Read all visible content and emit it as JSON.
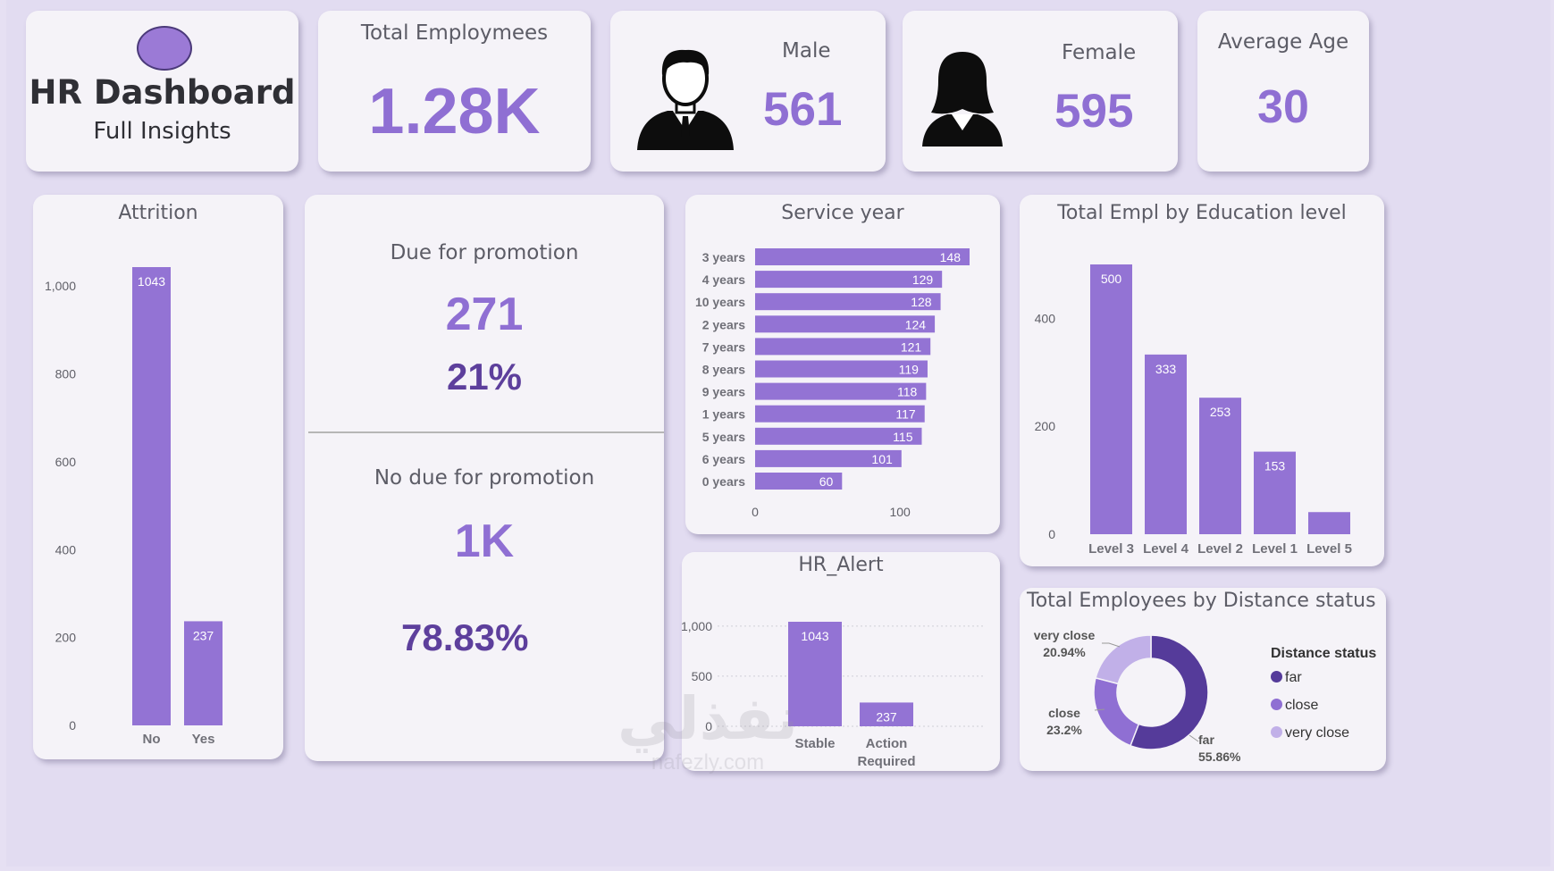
{
  "header": {
    "title": "HR Dashboard",
    "subtitle": "Full Insights",
    "colors": {
      "accent": "#8f6fd3",
      "dark": "#5d3f9c",
      "logo": "#9b7ad6"
    }
  },
  "kpis": {
    "total_employees": {
      "label": "Total Employmees",
      "value": "1.28K"
    },
    "male": {
      "label": "Male",
      "value": "561"
    },
    "female": {
      "label": "Female",
      "value": "595"
    },
    "average_age": {
      "label": "Average Age",
      "value": "30"
    }
  },
  "promotion": {
    "due_label": "Due for promotion",
    "due_count": "271",
    "due_pct": "21%",
    "no_due_label": "No due for promotion",
    "no_due_count": "1K",
    "no_due_pct": "78.83%"
  },
  "watermark": {
    "text": "نفذلي",
    "sub": "nafezly.com"
  },
  "chart_data": [
    {
      "id": "attrition",
      "type": "bar",
      "title": "Attrition",
      "categories": [
        "No",
        "Yes"
      ],
      "values": [
        1043,
        237
      ],
      "ylim": [
        0,
        1043
      ],
      "yticks": [
        0,
        200,
        400,
        600,
        800,
        1000
      ],
      "ytick_labels": [
        "0",
        "200",
        "400",
        "600",
        "800",
        "1,000"
      ],
      "grid": false
    },
    {
      "id": "service_year",
      "type": "bar",
      "orientation": "horizontal",
      "title": "Service year",
      "categories": [
        "3 years",
        "4 years",
        "10 years",
        "2 years",
        "7 years",
        "8 years",
        "9 years",
        "1 years",
        "5 years",
        "6 years",
        "0 years"
      ],
      "values": [
        148,
        129,
        128,
        124,
        121,
        119,
        118,
        117,
        115,
        101,
        60
      ],
      "xlim": [
        0,
        148
      ],
      "xticks": [
        0,
        100
      ],
      "xtick_labels": [
        "0",
        "100"
      ]
    },
    {
      "id": "education",
      "type": "bar",
      "title": "Total Empl by Education level",
      "categories": [
        "Level 3",
        "Level 4",
        "Level 2",
        "Level 1",
        "Level 5"
      ],
      "values": [
        500,
        333,
        253,
        153,
        41
      ],
      "labels": [
        "500",
        "333",
        "253",
        "153",
        ""
      ],
      "ylim": [
        0,
        500
      ],
      "yticks": [
        0,
        200,
        400
      ],
      "ytick_labels": [
        "0",
        "200",
        "400"
      ]
    },
    {
      "id": "hr_alert",
      "type": "bar",
      "title": "HR_Alert",
      "categories": [
        "Stable",
        "Action Required"
      ],
      "values": [
        1043,
        237
      ],
      "ylim": [
        0,
        1043
      ],
      "yticks": [
        0,
        500,
        1000
      ],
      "ytick_labels": [
        "0",
        "500",
        "1,000"
      ],
      "grid": true
    },
    {
      "id": "distance",
      "type": "pie",
      "donut": true,
      "title": "Total Employees by Distance status",
      "legend_title": "Distance status",
      "legend_position": "right",
      "slices": [
        {
          "name": "far",
          "pct": 55.86,
          "label": "55.86%",
          "color": "#553b9a"
        },
        {
          "name": "close",
          "pct": 23.2,
          "label": "23.2%",
          "color": "#8f6fd3"
        },
        {
          "name": "very close",
          "pct": 20.94,
          "label": "20.94%",
          "color": "#c1b0e8"
        }
      ]
    }
  ]
}
